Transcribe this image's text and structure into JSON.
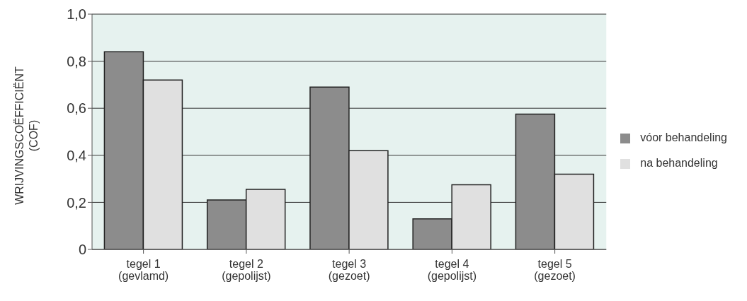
{
  "chart_data": {
    "type": "bar",
    "ylabel": "WRIJVINGSCOËFFICIËNT\n(COF)",
    "categories": [
      "tegel 1\n(gevlamd)",
      "tegel 2\n(gepolijst)",
      "tegel 3\n(gezoet)",
      "tegel 4\n(gepolijst)",
      "tegel 5\n(gezoet)"
    ],
    "series": [
      {
        "name": "vóor behandeling",
        "color": "#8c8c8c",
        "values": [
          0.84,
          0.21,
          0.69,
          0.13,
          0.575
        ]
      },
      {
        "name": "na behandeling",
        "color": "#e0e0e0",
        "values": [
          0.72,
          0.255,
          0.42,
          0.275,
          0.32
        ]
      }
    ],
    "ylim": [
      0,
      1
    ],
    "yticks": [
      0,
      {
        "value": 0.2,
        "label": "0,2"
      },
      {
        "value": 0.4,
        "label": "0,4"
      },
      {
        "value": 0.6,
        "label": "0,6"
      },
      {
        "value": 0.8,
        "label": "0,8"
      },
      {
        "value": 1,
        "label": "1,0"
      }
    ],
    "grid": "y",
    "legend": "right"
  }
}
